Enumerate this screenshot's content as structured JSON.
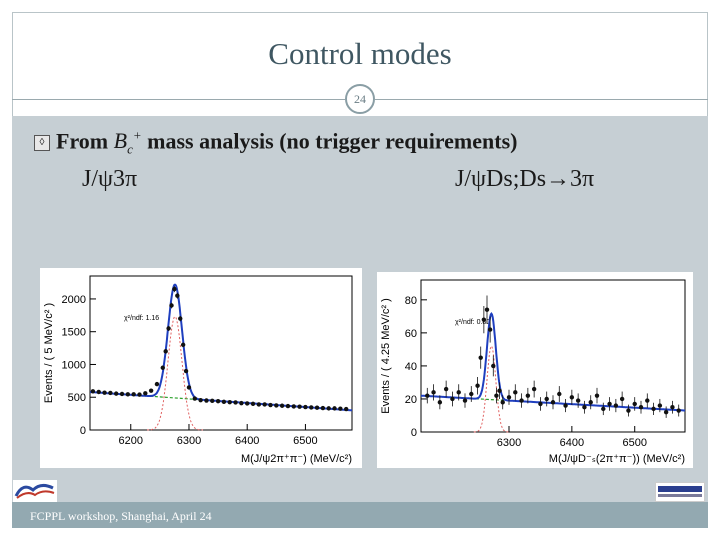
{
  "slide": {
    "title": "Control modes",
    "page_number": "24",
    "bullet": {
      "prefix": "From",
      "symbol": "Bc+",
      "suffix": "mass analysis (no trigger requirements)"
    },
    "decay_left": "J/ψ3π",
    "decay_right": "J/ψDs;Ds→3π",
    "footer": "FCPPL workshop, Shanghai, April 24"
  },
  "chart_data": [
    {
      "type": "scatter",
      "xlabel": "M(J/ψ2π⁺π⁻) (MeV/c²)",
      "ylabel": "Events / ( 5 MeV/c² )",
      "annotation": "χ²/ndf: 1.16",
      "xticks": [
        6200,
        6300,
        6400,
        6500
      ],
      "yticks": [
        0,
        500,
        1000,
        1500,
        2000
      ],
      "xlim": [
        6130,
        6580
      ],
      "ylim": [
        0,
        2350
      ],
      "colors": {
        "data": "#111111",
        "total_fit": "#1f3fbf",
        "background": "#2ca02c",
        "signal": "#e06060"
      },
      "points": {
        "x": [
          6135,
          6145,
          6155,
          6165,
          6175,
          6185,
          6195,
          6205,
          6215,
          6225,
          6235,
          6245,
          6255,
          6260,
          6265,
          6270,
          6275,
          6280,
          6285,
          6290,
          6295,
          6300,
          6310,
          6320,
          6330,
          6340,
          6350,
          6360,
          6370,
          6380,
          6390,
          6400,
          6410,
          6420,
          6430,
          6440,
          6450,
          6460,
          6470,
          6480,
          6490,
          6500,
          6510,
          6520,
          6530,
          6540,
          6550,
          6560,
          6570
        ],
        "y": [
          590,
          580,
          570,
          565,
          555,
          550,
          545,
          545,
          540,
          560,
          600,
          700,
          950,
          1200,
          1550,
          1900,
          2150,
          2050,
          1700,
          1300,
          900,
          650,
          480,
          455,
          450,
          445,
          440,
          430,
          425,
          420,
          410,
          405,
          400,
          390,
          390,
          380,
          375,
          370,
          365,
          360,
          355,
          350,
          345,
          340,
          335,
          330,
          330,
          325,
          320
        ]
      },
      "background_line": {
        "x": [
          6130,
          6580
        ],
        "y": [
          580,
          300
        ]
      },
      "signal_peak": {
        "mean": 6276,
        "sigma": 12,
        "height": 1730
      }
    },
    {
      "type": "scatter",
      "xlabel": "M(J/ψD⁻ₛ(2π⁺π⁻)) (MeV/c²)",
      "ylabel": "Events / ( 4.25 MeV/c² )",
      "annotation": "χ²/ndf: 0.80",
      "xticks": [
        6300,
        6400,
        6500
      ],
      "yticks": [
        0,
        20,
        40,
        60,
        80
      ],
      "xlim": [
        6160,
        6580
      ],
      "ylim": [
        0,
        92
      ],
      "colors": {
        "data": "#111111",
        "total_fit": "#1f3fbf",
        "background": "#2ca02c",
        "signal": "#e06060"
      },
      "points": {
        "x": [
          6170,
          6180,
          6190,
          6200,
          6210,
          6220,
          6230,
          6240,
          6250,
          6255,
          6260,
          6265,
          6270,
          6275,
          6280,
          6285,
          6290,
          6300,
          6310,
          6320,
          6330,
          6340,
          6350,
          6360,
          6370,
          6380,
          6390,
          6400,
          6410,
          6420,
          6430,
          6440,
          6450,
          6460,
          6470,
          6480,
          6490,
          6500,
          6510,
          6520,
          6530,
          6540,
          6550,
          6560,
          6570
        ],
        "y": [
          22,
          24,
          18,
          26,
          20,
          24,
          19,
          23,
          28,
          45,
          68,
          74,
          62,
          40,
          22,
          25,
          18,
          21,
          24,
          19,
          22,
          26,
          17,
          20,
          18,
          23,
          16,
          21,
          19,
          15,
          18,
          22,
          14,
          17,
          16,
          20,
          13,
          17,
          15,
          19,
          14,
          16,
          12,
          15,
          13
        ]
      },
      "background_line": {
        "x": [
          6160,
          6580
        ],
        "y": [
          22,
          13
        ]
      },
      "signal_peak": {
        "mean": 6272,
        "sigma": 7,
        "height": 52
      }
    }
  ]
}
